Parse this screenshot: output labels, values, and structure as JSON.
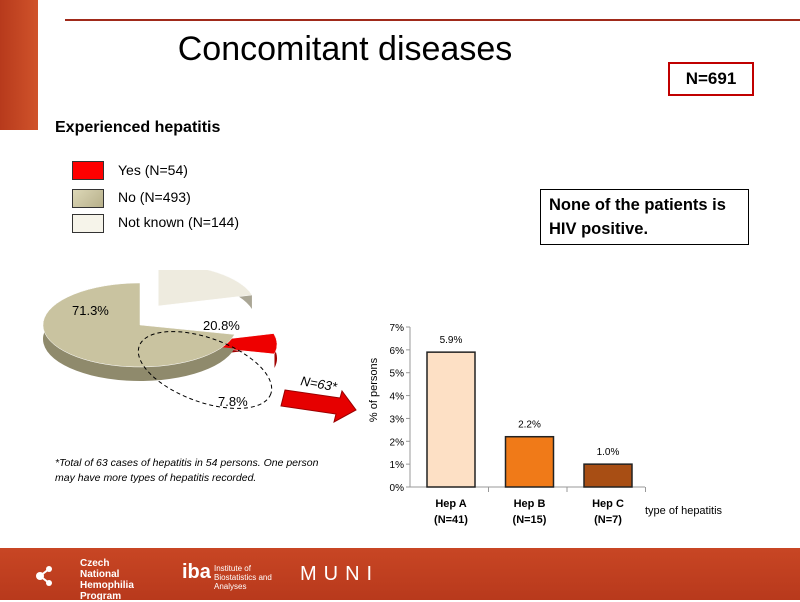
{
  "title": "Concomitant diseases",
  "n_total": "N=691",
  "section_heading": "Experienced hepatitis",
  "legend": [
    {
      "label": "Yes (N=54)",
      "color": "#ff0000"
    },
    {
      "label": "No (N=493)",
      "color": "#c9c3a0"
    },
    {
      "label": "Not known (N=144)",
      "color": "#f4f1e6"
    }
  ],
  "pie": {
    "slices": [
      {
        "name": "Not known",
        "value": 20.8,
        "label": "20.8%",
        "color": "#eeebdf"
      },
      {
        "name": "Yes",
        "value": 7.8,
        "label": "7.8%",
        "color": "#ee0000"
      },
      {
        "name": "No",
        "value": 71.3,
        "label": "71.3%",
        "color": "#c9c3a0"
      }
    ]
  },
  "hiv_note": "None of the patients is HIV positive.",
  "arrow_label": "N=63*",
  "footnote": "*Total of 63  cases of hepatitis in 54  persons. One person may have more types of hepatitis recorded.",
  "chart_data": {
    "type": "bar",
    "categories": [
      "Hep A",
      "Hep B",
      "Hep C"
    ],
    "category_sublabels": [
      "(N=41)",
      "(N=15)",
      "(N=7)"
    ],
    "values": [
      5.9,
      2.2,
      1.0
    ],
    "value_labels": [
      "5.9%",
      "2.2%",
      "1.0%"
    ],
    "colors": [
      "#fde0c5",
      "#f07a18",
      "#a84e14"
    ],
    "ylabel": "% of persons",
    "xlabel": "type of hepatitis",
    "ylim": [
      0,
      7
    ],
    "yticks": [
      "0%",
      "1%",
      "2%",
      "3%",
      "4%",
      "5%",
      "6%",
      "7%"
    ]
  },
  "footer": {
    "logo1": "Czech National Hemophilia Program",
    "logo2_mark": "iba",
    "logo2": "Institute of Biostatistics and Analyses",
    "logo3": "MUNI"
  }
}
